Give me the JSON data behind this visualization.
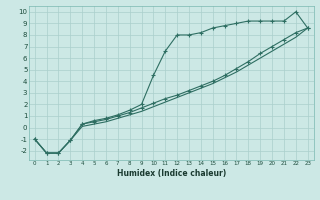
{
  "xlabel": "Humidex (Indice chaleur)",
  "ylabel": "",
  "bg_color": "#cce8e5",
  "grid_color": "#aacfcc",
  "line_color": "#2e6e62",
  "x_values": [
    0,
    1,
    2,
    3,
    4,
    5,
    6,
    7,
    8,
    9,
    10,
    11,
    12,
    13,
    14,
    15,
    16,
    17,
    18,
    19,
    20,
    21,
    22,
    23
  ],
  "line1": [
    -1,
    -2.2,
    -2.2,
    -1.1,
    0.3,
    0.6,
    0.8,
    1.1,
    1.5,
    2.0,
    4.5,
    6.6,
    8.0,
    8.0,
    8.2,
    8.6,
    8.8,
    9.0,
    9.2,
    9.2,
    9.2,
    9.2,
    10.0,
    8.6
  ],
  "line2": [
    -1,
    -2.2,
    -2.2,
    -1.1,
    0.3,
    0.5,
    0.7,
    1.0,
    1.3,
    1.7,
    2.1,
    2.5,
    2.8,
    3.2,
    3.6,
    4.0,
    4.5,
    5.1,
    5.7,
    6.4,
    7.0,
    7.6,
    8.2,
    8.6
  ],
  "line3": [
    -1,
    -2.2,
    -2.2,
    -1.1,
    0.1,
    0.3,
    0.5,
    0.8,
    1.1,
    1.4,
    1.8,
    2.2,
    2.6,
    3.0,
    3.4,
    3.8,
    4.3,
    4.8,
    5.4,
    6.0,
    6.6,
    7.2,
    7.8,
    8.6
  ],
  "xlim": [
    -0.5,
    23.5
  ],
  "ylim": [
    -2.8,
    10.5
  ],
  "yticks": [
    -2,
    -1,
    0,
    1,
    2,
    3,
    4,
    5,
    6,
    7,
    8,
    9,
    10
  ],
  "xticks": [
    0,
    1,
    2,
    3,
    4,
    5,
    6,
    7,
    8,
    9,
    10,
    11,
    12,
    13,
    14,
    15,
    16,
    17,
    18,
    19,
    20,
    21,
    22,
    23
  ]
}
